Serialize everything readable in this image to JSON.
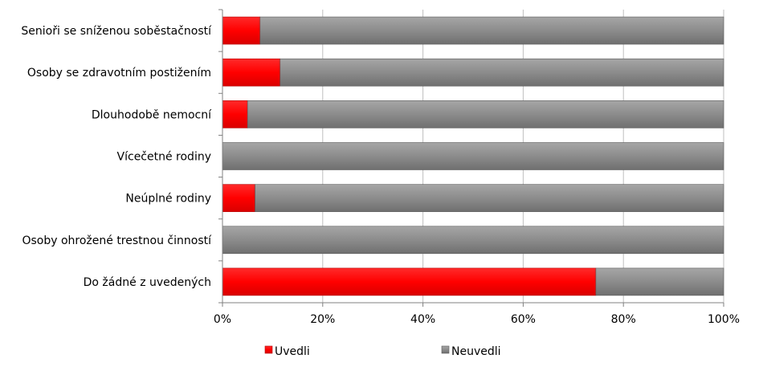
{
  "chart_data": {
    "type": "bar",
    "orientation": "horizontal",
    "stacked": "percent",
    "categories": [
      "Senioři se sníženou soběstačností",
      "Osoby se zdravotním postižením",
      "Dlouhodobě nemocní",
      "Vícečetné rodiny",
      "Neúplné rodiny",
      "Osoby ohrožené trestnou činností",
      "Do žádné z uvedených"
    ],
    "series": [
      {
        "name": "Uvedli",
        "color": "#ff0000",
        "values": [
          7.5,
          11.5,
          5,
          0,
          6.5,
          0,
          74.5
        ]
      },
      {
        "name": "Neuvedli",
        "color": "#8c8c8c",
        "values": [
          92.5,
          88.5,
          95,
          100,
          93.5,
          100,
          25.5
        ]
      }
    ],
    "xticks": [
      "0%",
      "20%",
      "40%",
      "60%",
      "80%",
      "100%"
    ],
    "xlim": [
      0,
      100
    ],
    "grid": true,
    "legend_position": "bottom"
  }
}
